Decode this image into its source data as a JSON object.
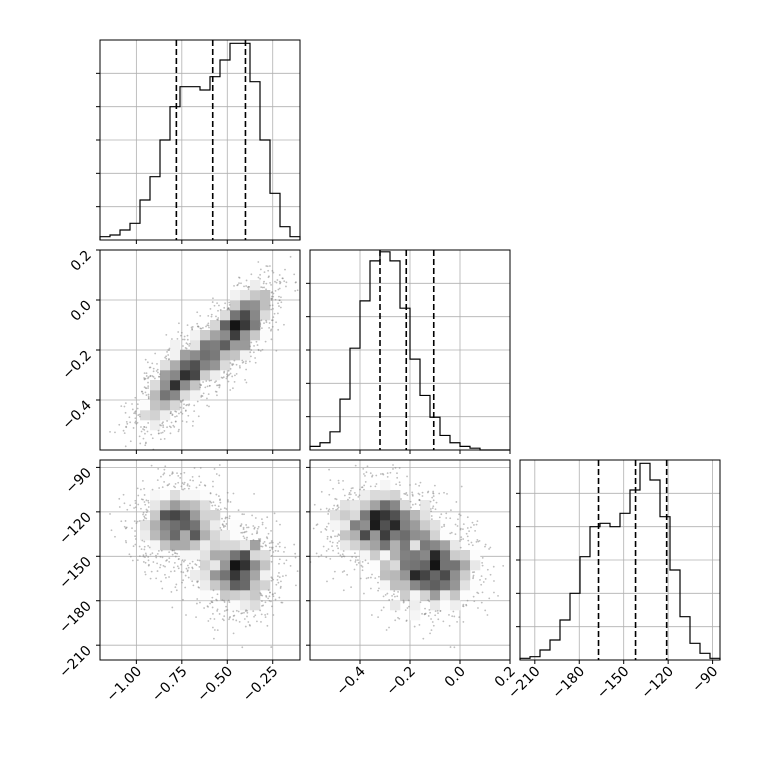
{
  "chart_data": {
    "type": "corner",
    "parameters": [
      {
        "xlim": [
          -1.2,
          -0.1
        ],
        "xticks": [
          -1.0,
          -0.75,
          -0.5,
          -0.25
        ],
        "xtick_labels": [
          "−1.00",
          "−0.75",
          "−0.50",
          "−0.25"
        ]
      },
      {
        "xlim": [
          -0.6,
          0.2
        ],
        "xticks": [
          -0.4,
          -0.2,
          0.0,
          0.2
        ],
        "xtick_labels": [
          "−0.4",
          "−0.2",
          "0.0",
          "0.2"
        ],
        "yticks": [
          -0.4,
          -0.2,
          0.0,
          0.2
        ],
        "ytick_labels": [
          "−0.4",
          "−0.2",
          "0.0",
          "0.2"
        ]
      },
      {
        "xlim": [
          -220,
          -85
        ],
        "xticks": [
          -210,
          -180,
          -150,
          -120,
          -90
        ],
        "xtick_labels": [
          "−210",
          "−180",
          "−150",
          "−120",
          "−90"
        ],
        "yticks": [
          -210,
          -180,
          -150,
          -120,
          -90
        ],
        "ytick_labels": [
          "−210",
          "−180",
          "−150",
          "−120",
          "−90"
        ]
      }
    ],
    "quantiles": [
      [
        -0.78,
        -0.58,
        -0.4
      ],
      [
        -0.32,
        -0.215,
        -0.105
      ],
      [
        -167,
        -142,
        -121
      ]
    ],
    "histograms": [
      {
        "edges_start": -1.2,
        "bin_width": 0.055,
        "counts": [
          2,
          3,
          6,
          10,
          24,
          38,
          60,
          80,
          92,
          92,
          90,
          98,
          108,
          118,
          118,
          95,
          60,
          28,
          8,
          2
        ]
      },
      {
        "edges_start": -0.6,
        "bin_width": 0.04,
        "counts": [
          2,
          4,
          10,
          28,
          56,
          82,
          104,
          109,
          104,
          78,
          50,
          30,
          18,
          8,
          4,
          2,
          1,
          0,
          0,
          0
        ]
      },
      {
        "edges_start": -220,
        "bin_width": 6.75,
        "counts": [
          1,
          2,
          6,
          12,
          24,
          40,
          62,
          80,
          82,
          80,
          88,
          102,
          118,
          108,
          86,
          54,
          26,
          10,
          4,
          1
        ]
      }
    ],
    "histogram_ymax": [
      120,
      110,
      120
    ],
    "grid": true
  }
}
